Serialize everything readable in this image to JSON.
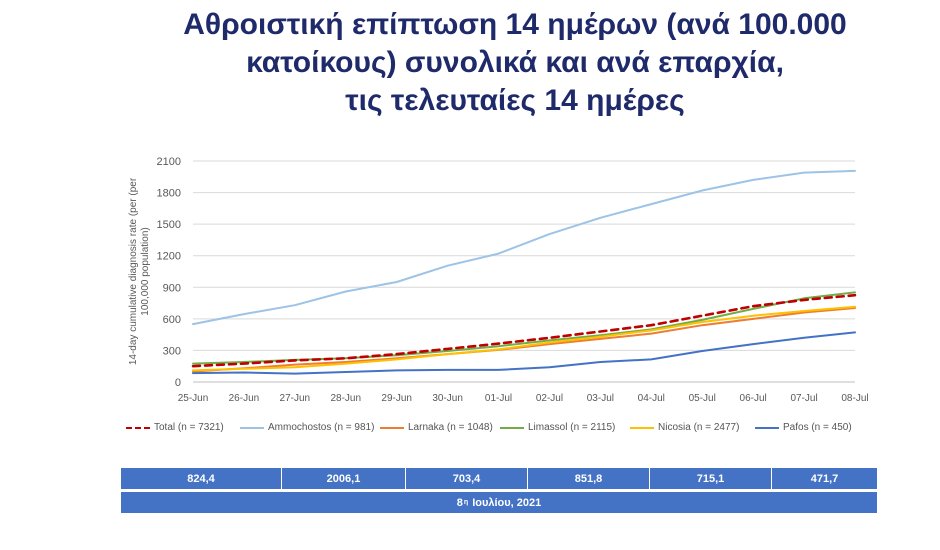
{
  "title": {
    "line1": "Αθροιστική επίπτωση 14 ημέρων (ανά 100.000",
    "line2": "κατοίκους) συνολικά και ανά επαρχία,",
    "line3": "τις τελευταίες 14 ημέρες"
  },
  "chart_data": {
    "type": "line",
    "ylabel": "14-day cumulative diagnosis rate (per 100,000 population)",
    "ylim": [
      0,
      2100
    ],
    "yticks": [
      0,
      300,
      600,
      900,
      1200,
      1500,
      1800,
      2100
    ],
    "grid": true,
    "legend_position": "bottom",
    "categories": [
      "25-Jun",
      "26-Jun",
      "27-Jun",
      "28-Jun",
      "29-Jun",
      "30-Jun",
      "01-Jul",
      "02-Jul",
      "03-Jul",
      "04-Jul",
      "05-Jul",
      "06-Jul",
      "07-Jul",
      "08-Jul"
    ],
    "series": [
      {
        "name": "Total (n = 7321)",
        "color": "#c00000",
        "dashed": true,
        "values": [
          150,
          175,
          205,
          225,
          265,
          315,
          365,
          420,
          480,
          540,
          630,
          720,
          780,
          824.4
        ]
      },
      {
        "name": "Ammochostos (n = 981)",
        "color": "#9dc3e6",
        "dashed": false,
        "values": [
          550,
          645,
          730,
          860,
          950,
          1105,
          1220,
          1405,
          1560,
          1690,
          1820,
          1920,
          1990,
          2006.1
        ]
      },
      {
        "name": "Larnaka (n = 1048)",
        "color": "#ed7d31",
        "dashed": false,
        "values": [
          100,
          130,
          165,
          190,
          225,
          265,
          305,
          360,
          410,
          460,
          540,
          600,
          660,
          703.4
        ]
      },
      {
        "name": "Limassol (n = 2115)",
        "color": "#70ad47",
        "dashed": false,
        "values": [
          175,
          190,
          210,
          225,
          255,
          295,
          340,
          395,
          445,
          500,
          590,
          695,
          795,
          851.8
        ]
      },
      {
        "name": "Nicosia (n = 2477)",
        "color": "#ffc000",
        "dashed": false,
        "values": [
          110,
          125,
          140,
          175,
          215,
          265,
          310,
          375,
          430,
          490,
          570,
          630,
          675,
          715.1
        ]
      },
      {
        "name": "Pafos (n = 450)",
        "color": "#4472c4",
        "dashed": false,
        "values": [
          85,
          90,
          80,
          95,
          110,
          115,
          115,
          140,
          190,
          215,
          295,
          360,
          420,
          471.7
        ]
      }
    ]
  },
  "summary_table": {
    "values": [
      "824,4",
      "2006,1",
      "703,4",
      "851,8",
      "715,1",
      "471,7"
    ],
    "date_day": "8",
    "date_sup": "η",
    "date_rest": "Ιουλίου, 2021"
  }
}
